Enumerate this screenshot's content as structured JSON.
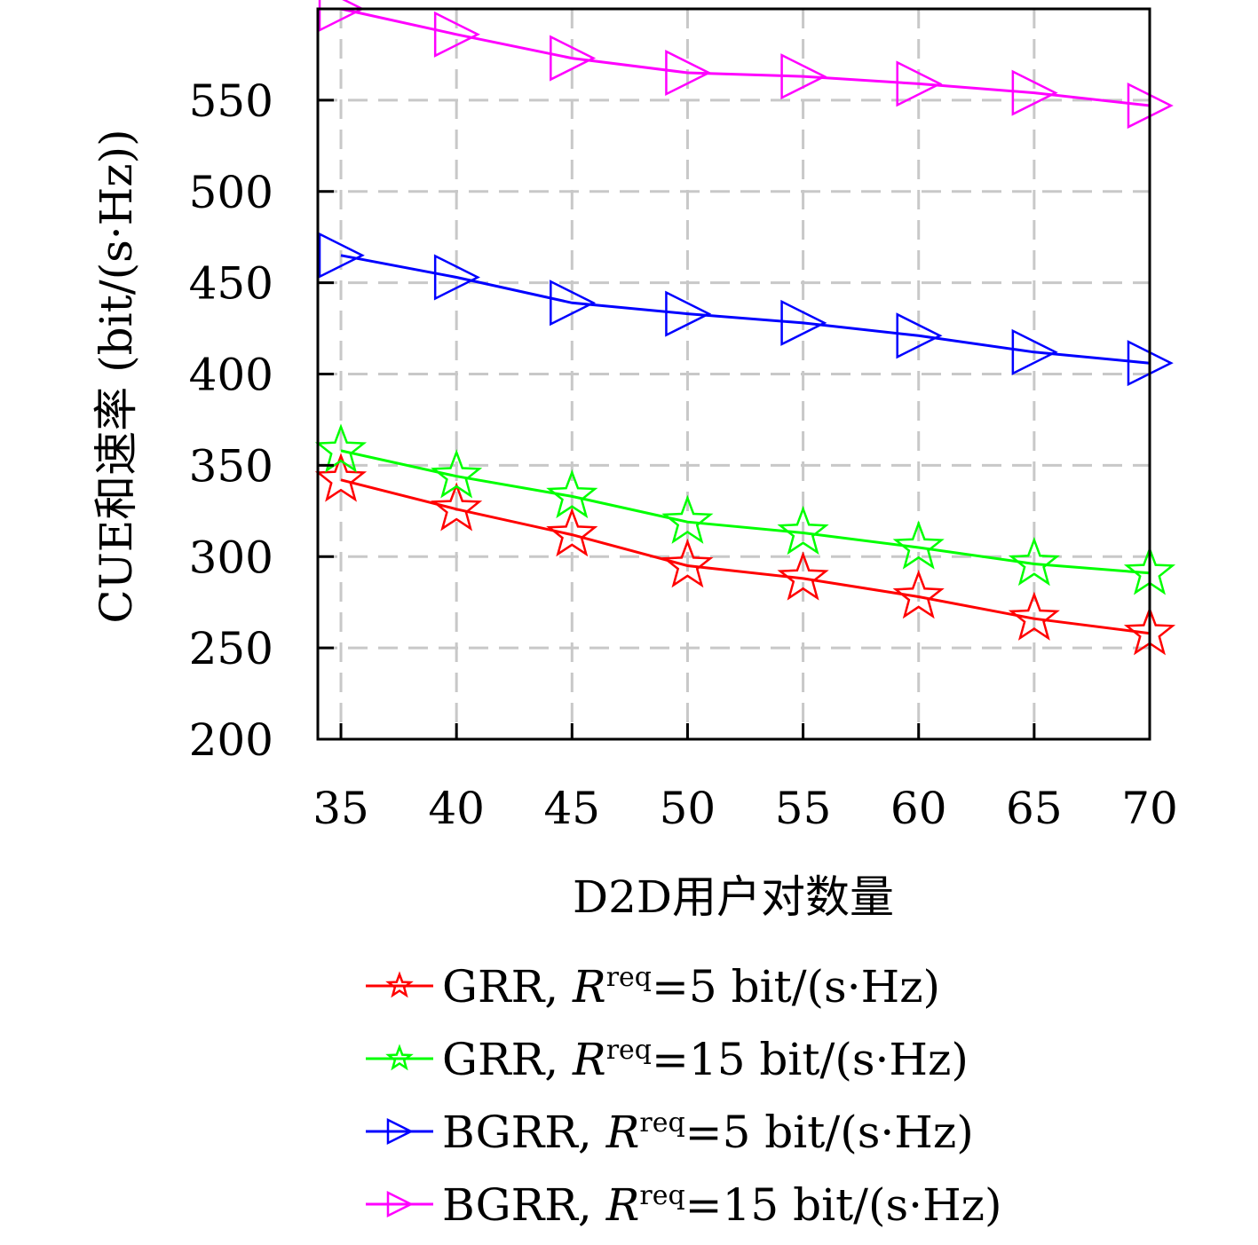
{
  "chart_data": {
    "type": "line",
    "xlabel": "D2D用户对数量",
    "ylabel": "CUE和速率 (bit/(s·Hz))",
    "x": [
      35,
      40,
      45,
      50,
      55,
      60,
      65,
      70
    ],
    "xticks": [
      "35",
      "40",
      "45",
      "50",
      "55",
      "60",
      "65",
      "70"
    ],
    "yticks": [
      "200",
      "250",
      "300",
      "350",
      "400",
      "450",
      "500",
      "550"
    ],
    "xlim": [
      34,
      70
    ],
    "ylim": [
      200,
      600
    ],
    "grid": true,
    "legend_position": "below-plot",
    "series": [
      {
        "name": "GRR, R^req=5 bit/(s·Hz)",
        "label_prefix": "GRR, ",
        "label_var": "R",
        "label_sup": "req",
        "label_suffix": "=5 bit/(s·Hz)",
        "color": "#ff0000",
        "marker": "star",
        "values": [
          342,
          326,
          312,
          295,
          288,
          278,
          266,
          258
        ]
      },
      {
        "name": "GRR, R^req=15 bit/(s·Hz)",
        "label_prefix": "GRR, ",
        "label_var": "R",
        "label_sup": "req",
        "label_suffix": "=15 bit/(s·Hz)",
        "color": "#00ff00",
        "marker": "star",
        "values": [
          358,
          344,
          333,
          319,
          313,
          305,
          296,
          291
        ]
      },
      {
        "name": "BGRR, R^req=5 bit/(s·Hz)",
        "label_prefix": "BGRR, ",
        "label_var": "R",
        "label_sup": "req",
        "label_suffix": "=5 bit/(s·Hz)",
        "color": "#0000ff",
        "marker": "triangle-right",
        "values": [
          465,
          453,
          439,
          433,
          428,
          421,
          412,
          406
        ]
      },
      {
        "name": "BGRR, R^req=15 bit/(s·Hz)",
        "label_prefix": "BGRR, ",
        "label_var": "R",
        "label_sup": "req",
        "label_suffix": "=15 bit/(s·Hz)",
        "color": "#ff00ff",
        "marker": "triangle-right",
        "values": [
          600,
          586,
          573,
          565,
          563,
          559,
          554,
          547
        ]
      }
    ]
  }
}
